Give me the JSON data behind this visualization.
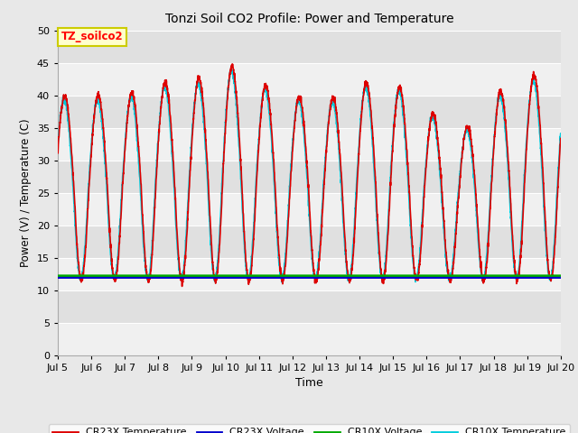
{
  "title": "Tonzi Soil CO2 Profile: Power and Temperature",
  "xlabel": "Time",
  "ylabel": "Power (V) / Temperature (C)",
  "ylim": [
    0,
    50
  ],
  "yticks": [
    0,
    5,
    10,
    15,
    20,
    25,
    30,
    35,
    40,
    45,
    50
  ],
  "xlim_start": 5,
  "xlim_end": 20,
  "xtick_labels": [
    "Jul 5",
    "Jul 6",
    "Jul 7",
    "Jul 8",
    "Jul 9",
    "Jul 10",
    "Jul 11",
    "Jul 12",
    "Jul 13",
    "Jul 14",
    "Jul 15",
    "Jul 16",
    "Jul 17",
    "Jul 18",
    "Jul 19",
    "Jul 20"
  ],
  "fig_bg_color": "#e8e8e8",
  "plot_bg_color": "#e0e0e0",
  "grid_color": "#f5f5f5",
  "cr23x_temp_color": "#dd0000",
  "cr23x_volt_color": "#0000cc",
  "cr10x_volt_color": "#00aa00",
  "cr10x_temp_color": "#00ccdd",
  "cr23x_volt_value": 11.9,
  "cr10x_volt_value": 12.2,
  "annotation_text": "TZ_soilco2",
  "annotation_bg": "#ffffcc",
  "annotation_border": "#cccc00",
  "legend_labels": [
    "CR23X Temperature",
    "CR23X Voltage",
    "CR10X Voltage",
    "CR10X Temperature"
  ]
}
